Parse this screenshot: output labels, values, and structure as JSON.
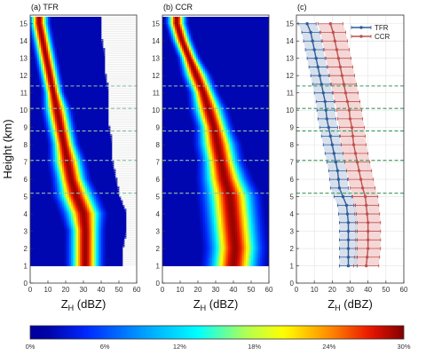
{
  "chart_data": [
    {
      "type": "heatmap",
      "panel_label": "(a) TFR",
      "xlabel": "Z",
      "xlabel_sub": "H",
      "xlabel_unit": " (dBZ)",
      "ylabel": "Height (km)",
      "xlim": [
        0,
        60
      ],
      "ylim": [
        0,
        15.5
      ],
      "xticks": [
        0,
        10,
        20,
        30,
        40,
        50,
        60
      ],
      "yticks": [
        0,
        1,
        2,
        3,
        4,
        5,
        6,
        7,
        8,
        9,
        10,
        11,
        12,
        13,
        14,
        15
      ],
      "height": [
        1,
        2,
        3,
        4,
        5,
        6,
        7,
        8,
        9,
        10,
        11,
        12,
        13,
        14,
        15
      ],
      "ridge_dbz": [
        31,
        31,
        31,
        30,
        26,
        23,
        21,
        19,
        17,
        15,
        13,
        11,
        9,
        7,
        5
      ],
      "spread_dbz": [
        5,
        5,
        5,
        6,
        6,
        5,
        5,
        4,
        4,
        4,
        3,
        3,
        3,
        3,
        3
      ],
      "data_right_edge_dbz": [
        52,
        52,
        54,
        54,
        50,
        48,
        46,
        46,
        44,
        44,
        44,
        42,
        42,
        40,
        40
      ],
      "dashed_lines_km": [
        5.2,
        7.1,
        8.8,
        10.1,
        11.4
      ]
    },
    {
      "type": "heatmap",
      "panel_label": "(b) CCR",
      "xlabel": "Z",
      "xlabel_sub": "H",
      "xlabel_unit": " (dBZ)",
      "xlim": [
        0,
        60
      ],
      "ylim": [
        0,
        15.5
      ],
      "xticks": [
        0,
        10,
        20,
        30,
        40,
        50,
        60
      ],
      "yticks": [
        0,
        1,
        2,
        3,
        4,
        5,
        6,
        7,
        8,
        9,
        10,
        11,
        12,
        13,
        14,
        15
      ],
      "height": [
        1,
        2,
        3,
        4,
        5,
        6,
        7,
        8,
        9,
        10,
        11,
        12,
        13,
        14,
        15
      ],
      "ridge_dbz": [
        40,
        41,
        40,
        39,
        38,
        35,
        33,
        31,
        29,
        26,
        23,
        19,
        15,
        11,
        8
      ],
      "spread_dbz": [
        8,
        8,
        8,
        8,
        8,
        7,
        6,
        6,
        5,
        5,
        4,
        4,
        3,
        3,
        3
      ],
      "data_right_edge_dbz": [
        60,
        60,
        60,
        60,
        60,
        60,
        60,
        60,
        60,
        60,
        60,
        60,
        60,
        60,
        60
      ],
      "dashed_lines_km": [
        5.2,
        7.1,
        8.8,
        10.1,
        11.4
      ]
    },
    {
      "type": "line",
      "panel_label": "(c)",
      "xlabel": "Z",
      "xlabel_sub": "H",
      "xlabel_unit": " (dBZ)",
      "xlim": [
        0,
        60
      ],
      "ylim": [
        0,
        15.5
      ],
      "xticks": [
        0,
        10,
        20,
        30,
        40,
        50,
        60
      ],
      "yticks": [
        0,
        1,
        2,
        3,
        4,
        5,
        6,
        7,
        8,
        9,
        10,
        11,
        12,
        13,
        14,
        15
      ],
      "legend_position": "top-right",
      "dashed_lines_km": [
        5.2,
        7.1,
        8.8,
        10.1,
        11.4
      ],
      "series": [
        {
          "name": "TFR",
          "color": "#2f5c9a",
          "fill": "#c9d6e6",
          "y": [
            1.0,
            1.5,
            2.0,
            2.5,
            3.0,
            3.5,
            4.0,
            4.5,
            5.0,
            5.5,
            6.0,
            6.5,
            7.0,
            7.5,
            8.0,
            8.5,
            9.0,
            9.5,
            10.0,
            10.5,
            11.0,
            11.5,
            12.0,
            12.5,
            13.0,
            13.5,
            14.0,
            14.5,
            15.0
          ],
          "x": [
            29,
            29,
            29,
            29,
            29,
            29,
            28.5,
            28,
            26,
            24,
            23.5,
            23,
            22,
            21,
            20,
            19,
            18,
            17,
            16.5,
            16,
            15,
            14,
            13,
            12,
            11,
            10,
            9,
            8,
            6
          ],
          "err": [
            5,
            5,
            5,
            5,
            5,
            5,
            5,
            5,
            5,
            5,
            5,
            5,
            5,
            5,
            5,
            5,
            5,
            5,
            5,
            5,
            5,
            5,
            5,
            5,
            5,
            5,
            5,
            5,
            5
          ]
        },
        {
          "name": "CCR",
          "color": "#c0504d",
          "fill": "#f0c9c8",
          "y": [
            1.0,
            1.5,
            2.0,
            2.5,
            3.0,
            3.5,
            4.0,
            4.5,
            5.0,
            5.5,
            6.0,
            6.5,
            7.0,
            7.5,
            8.0,
            8.5,
            9.0,
            9.5,
            10.0,
            10.5,
            11.0,
            11.5,
            12.0,
            12.5,
            13.0,
            13.5,
            14.0,
            14.5,
            15.0
          ],
          "x": [
            39,
            39.5,
            40,
            40,
            40,
            40,
            39.5,
            39,
            38.5,
            37,
            36,
            35,
            34,
            33,
            32,
            31.5,
            31,
            30,
            29.5,
            28.5,
            27.5,
            26.5,
            25.5,
            24.5,
            23.5,
            22.5,
            21.5,
            20.5,
            19
          ],
          "err": [
            7,
            7,
            7,
            7,
            7,
            7,
            7,
            7,
            7,
            7,
            7,
            7,
            7,
            7,
            7,
            7,
            7,
            7,
            7,
            7,
            7,
            7,
            7,
            7,
            7,
            7,
            7,
            7,
            7
          ]
        }
      ]
    }
  ],
  "colorbar": {
    "min_percent": 0,
    "max_percent": 30,
    "tick_labels": [
      "0%",
      "6%",
      "12%",
      "18%",
      "24%",
      "30%"
    ]
  }
}
